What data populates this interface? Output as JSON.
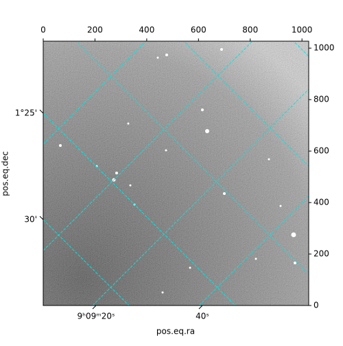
{
  "chart_data": {
    "type": "image",
    "xlabel": "pos.eq.ra",
    "ylabel": "pos.eq.dec",
    "xlim": [
      0,
      1026
    ],
    "xticks": [
      0,
      200,
      400,
      600,
      800,
      1000
    ],
    "ylim": [
      0,
      1027
    ],
    "yticks": [
      0,
      200,
      400,
      600,
      800,
      1000
    ],
    "ra_ticks": [
      "9ʰ09ᵐ20ˢ",
      "40ˢ"
    ],
    "dec_ticks": [
      "1°25'",
      "30'"
    ],
    "grid_color": "#00e5e5"
  }
}
